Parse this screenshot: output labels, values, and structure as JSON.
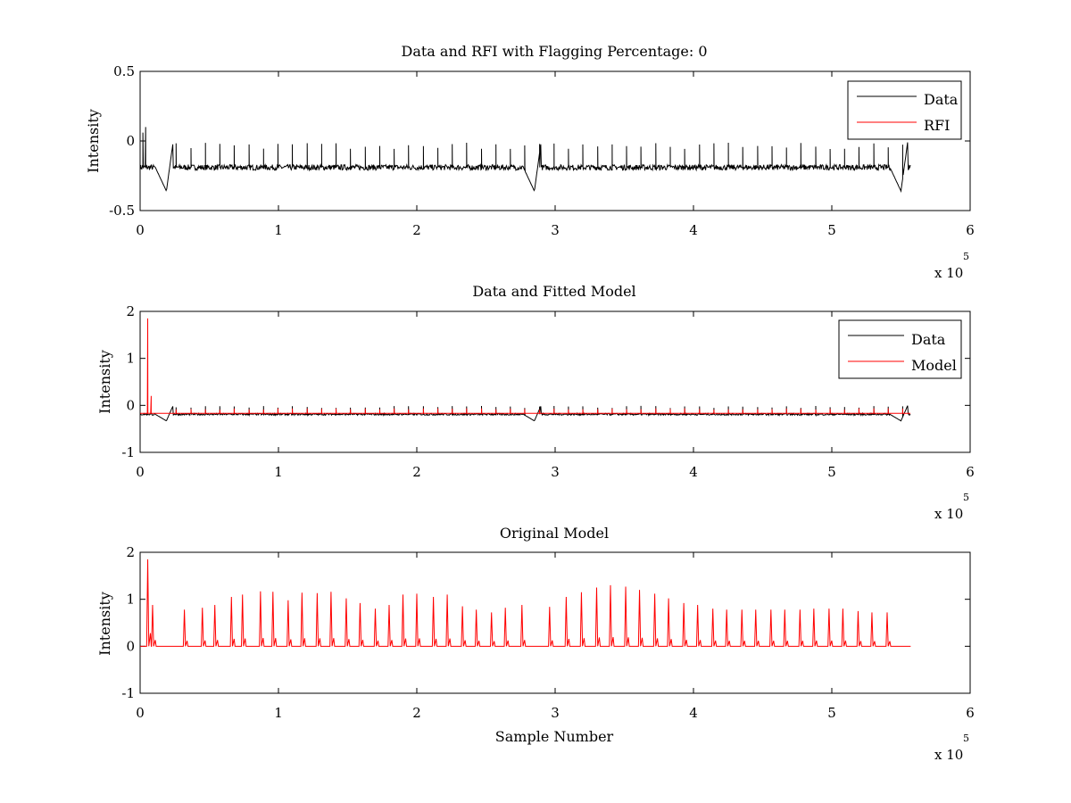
{
  "chart_data": [
    {
      "type": "line",
      "title": "Data and RFI with Flagging Percentage: 0",
      "xlabel": "",
      "ylabel": "Intensity",
      "xlim": [
        0,
        6
      ],
      "ylim": [
        -0.5,
        0.5
      ],
      "x_exponent_label": "x 10",
      "x_exponent": "5",
      "xticks": [
        "0",
        "1",
        "2",
        "3",
        "4",
        "5",
        "6"
      ],
      "yticks": [
        "-0.5",
        "0",
        "0.5"
      ],
      "legend_position": "top-right",
      "series": [
        {
          "name": "Data",
          "color": "#000000",
          "baseline": -0.19,
          "noise": 0.02,
          "x_end": 5.57,
          "spike_height_fraction": 0.6,
          "dips": [
            {
              "x": 0.19,
              "y": -0.36
            },
            {
              "x": 2.85,
              "y": -0.36
            },
            {
              "x": 5.5,
              "y": -0.36
            }
          ],
          "start_spikes": [
            {
              "x": 0.02,
              "y": 0.06
            },
            {
              "x": 0.04,
              "y": 0.1
            }
          ]
        },
        {
          "name": "RFI",
          "color": "#ff0000",
          "points": []
        }
      ]
    },
    {
      "type": "line",
      "title": "Data and Fitted Model",
      "xlabel": "",
      "ylabel": "Intensity",
      "xlim": [
        0,
        6
      ],
      "ylim": [
        -1,
        2
      ],
      "x_exponent_label": "x 10",
      "x_exponent": "5",
      "xticks": [
        "0",
        "1",
        "2",
        "3",
        "4",
        "5",
        "6"
      ],
      "yticks": [
        "-1",
        "0",
        "1",
        "2"
      ],
      "legend_position": "top-right",
      "series": [
        {
          "name": "Data",
          "color": "#000000",
          "baseline": -0.19,
          "noise": 0.02,
          "x_end": 5.57,
          "spike_height_fraction": 0.2,
          "dips": [
            {
              "x": 0.19,
              "y": -0.33
            },
            {
              "x": 2.85,
              "y": -0.33
            },
            {
              "x": 5.5,
              "y": -0.33
            }
          ]
        },
        {
          "name": "Model",
          "color": "#ff0000",
          "baseline": -0.17,
          "x_end": 5.57,
          "spike_height_fraction": 0.12,
          "start_spikes": [
            {
              "x": 0.055,
              "y": 1.85
            },
            {
              "x": 0.08,
              "y": 0.2
            }
          ]
        }
      ]
    },
    {
      "type": "line",
      "title": "Original Model",
      "xlabel": "Sample Number",
      "ylabel": "Intensity",
      "xlim": [
        0,
        6
      ],
      "ylim": [
        -1,
        2
      ],
      "x_exponent_label": "x 10",
      "x_exponent": "5",
      "xticks": [
        "0",
        "1",
        "2",
        "3",
        "4",
        "5",
        "6"
      ],
      "yticks": [
        "-1",
        "0",
        "1",
        "2"
      ],
      "series": [
        {
          "name": "Model",
          "color": "#ff0000",
          "baseline": 0,
          "x_end": 5.57,
          "spikes": [
            {
              "x": 0.055,
              "y": 1.85
            },
            {
              "x": 0.09,
              "y": 0.88
            },
            {
              "x": 0.32,
              "y": 0.78
            },
            {
              "x": 0.45,
              "y": 0.82
            },
            {
              "x": 0.54,
              "y": 0.88
            },
            {
              "x": 0.66,
              "y": 1.05
            },
            {
              "x": 0.74,
              "y": 1.1
            },
            {
              "x": 0.87,
              "y": 1.17
            },
            {
              "x": 0.96,
              "y": 1.16
            },
            {
              "x": 1.07,
              "y": 0.98
            },
            {
              "x": 1.17,
              "y": 1.14
            },
            {
              "x": 1.28,
              "y": 1.13
            },
            {
              "x": 1.38,
              "y": 1.16
            },
            {
              "x": 1.49,
              "y": 1.02
            },
            {
              "x": 1.59,
              "y": 0.92
            },
            {
              "x": 1.7,
              "y": 0.8
            },
            {
              "x": 1.8,
              "y": 0.88
            },
            {
              "x": 1.9,
              "y": 1.1
            },
            {
              "x": 2.0,
              "y": 1.12
            },
            {
              "x": 2.12,
              "y": 1.05
            },
            {
              "x": 2.22,
              "y": 1.1
            },
            {
              "x": 2.33,
              "y": 0.85
            },
            {
              "x": 2.43,
              "y": 0.78
            },
            {
              "x": 2.54,
              "y": 0.72
            },
            {
              "x": 2.64,
              "y": 0.82
            },
            {
              "x": 2.76,
              "y": 0.88
            },
            {
              "x": 2.96,
              "y": 0.84
            },
            {
              "x": 3.08,
              "y": 1.05
            },
            {
              "x": 3.19,
              "y": 1.15
            },
            {
              "x": 3.3,
              "y": 1.25
            },
            {
              "x": 3.4,
              "y": 1.3
            },
            {
              "x": 3.51,
              "y": 1.27
            },
            {
              "x": 3.61,
              "y": 1.2
            },
            {
              "x": 3.72,
              "y": 1.12
            },
            {
              "x": 3.82,
              "y": 1.02
            },
            {
              "x": 3.93,
              "y": 0.92
            },
            {
              "x": 4.03,
              "y": 0.88
            },
            {
              "x": 4.14,
              "y": 0.8
            },
            {
              "x": 4.24,
              "y": 0.78
            },
            {
              "x": 4.35,
              "y": 0.78
            },
            {
              "x": 4.45,
              "y": 0.78
            },
            {
              "x": 4.56,
              "y": 0.78
            },
            {
              "x": 4.66,
              "y": 0.78
            },
            {
              "x": 4.77,
              "y": 0.78
            },
            {
              "x": 4.87,
              "y": 0.8
            },
            {
              "x": 4.98,
              "y": 0.8
            },
            {
              "x": 5.08,
              "y": 0.8
            },
            {
              "x": 5.19,
              "y": 0.75
            },
            {
              "x": 5.29,
              "y": 0.72
            },
            {
              "x": 5.4,
              "y": 0.72
            }
          ]
        }
      ]
    }
  ]
}
